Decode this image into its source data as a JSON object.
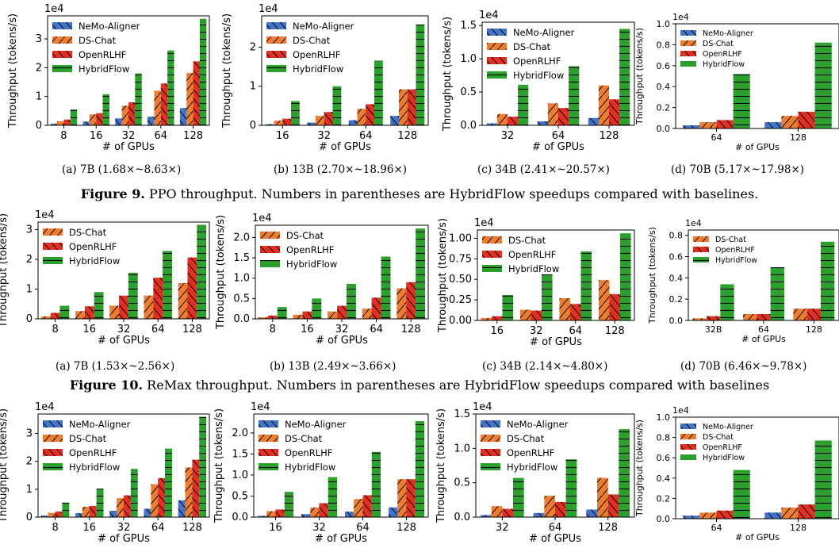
{
  "colors": {
    "NeMo-Aligner": "#4472c4",
    "DS-Chat": "#ed7d31",
    "OpenRLHF": "#e03024",
    "HybridFlow": "#2ca02c"
  },
  "hatch": {
    "NeMo-Aligner": "backslash",
    "DS-Chat": "slash",
    "OpenRLHF": "backslash",
    "HybridFlow": "horizontal"
  },
  "figures": [
    {
      "label": "Figure 9.",
      "text": " PPO throughput. Numbers in parentheses are HybridFlow speedups compared with baselines."
    },
    {
      "label": "Figure 10.",
      "text": " ReMax throughput. Numbers in parentheses are HybridFlow speedups compared with baselines"
    }
  ],
  "captions": [
    "(a)  7B (1.68×~8.63×)",
    "(b)  13B (2.70×~18.96×)",
    "(c)  34B (2.41×~20.57×)",
    "(d)  70B (5.17×~17.98×)",
    "(a)  7B (1.53×~2.56×)",
    "(b)  13B (2.49×~3.66×)",
    "(c)  34B (2.14×~4.80×)",
    "(d)  70B (6.46×~9.78×)"
  ],
  "chart_data": [
    {
      "type": "bar",
      "xlabel": "# of GPUs",
      "ylabel": "Throughput (tokens/s)",
      "offset_text": "1e4",
      "categories": [
        "8",
        "16",
        "32",
        "64",
        "128"
      ],
      "ylim": [
        0,
        3.8
      ],
      "yticks": [
        "0",
        "1",
        "2",
        "3"
      ],
      "legend": "upper-left",
      "series": [
        {
          "name": "NeMo-Aligner",
          "values": [
            0.06,
            0.13,
            0.24,
            0.3,
            0.6
          ]
        },
        {
          "name": "DS-Chat",
          "values": [
            0.14,
            0.38,
            0.68,
            1.2,
            1.82
          ]
        },
        {
          "name": "OpenRLHF",
          "values": [
            0.2,
            0.42,
            0.8,
            1.45,
            2.22
          ]
        },
        {
          "name": "HybridFlow",
          "values": [
            0.55,
            1.08,
            1.8,
            2.6,
            3.7
          ]
        }
      ]
    },
    {
      "type": "bar",
      "xlabel": "# of GPUs",
      "ylabel": "Throughput (tokens/s)",
      "offset_text": "1e4",
      "categories": [
        "16",
        "32",
        "64",
        "128"
      ],
      "ylim": [
        0,
        2.8
      ],
      "yticks": [
        "0",
        "1",
        "2"
      ],
      "legend": "upper-left",
      "series": [
        {
          "name": "NeMo-Aligner",
          "values": [
            0.03,
            0.07,
            0.13,
            0.24
          ]
        },
        {
          "name": "DS-Chat",
          "values": [
            0.12,
            0.24,
            0.42,
            0.92
          ]
        },
        {
          "name": "OpenRLHF",
          "values": [
            0.17,
            0.34,
            0.54,
            0.92
          ]
        },
        {
          "name": "HybridFlow",
          "values": [
            0.62,
            1.0,
            1.65,
            2.58
          ]
        }
      ]
    },
    {
      "type": "bar",
      "xlabel": "# of GPUs",
      "ylabel": "Throughput (tokens/s)",
      "offset_text": "1e4",
      "categories": [
        "32",
        "64",
        "128"
      ],
      "ylim": [
        0,
        1.55
      ],
      "yticks": [
        "0.0",
        "0.5",
        "1.0",
        "1.5"
      ],
      "legend": "upper-left",
      "series": [
        {
          "name": "NeMo-Aligner",
          "values": [
            0.03,
            0.06,
            0.11
          ]
        },
        {
          "name": "DS-Chat",
          "values": [
            0.17,
            0.33,
            0.6
          ]
        },
        {
          "name": "OpenRLHF",
          "values": [
            0.13,
            0.26,
            0.39
          ]
        },
        {
          "name": "HybridFlow",
          "values": [
            0.61,
            0.89,
            1.45
          ]
        }
      ]
    },
    {
      "type": "bar",
      "xlabel": "# of GPUs",
      "ylabel": "Throughput (tokens/s)",
      "offset_text": "1e4",
      "categories": [
        "64",
        "128"
      ],
      "ylim": [
        0,
        1.0
      ],
      "yticks": [
        "0.0",
        "0.2",
        "0.4",
        "0.6",
        "0.8",
        "1.0"
      ],
      "legend": "upper-left",
      "series": [
        {
          "name": "NeMo-Aligner",
          "values": [
            0.03,
            0.06
          ]
        },
        {
          "name": "DS-Chat",
          "values": [
            0.06,
            0.12
          ]
        },
        {
          "name": "OpenRLHF",
          "values": [
            0.08,
            0.16
          ]
        },
        {
          "name": "HybridFlow",
          "values": [
            0.52,
            0.82
          ]
        }
      ]
    },
    {
      "type": "bar",
      "xlabel": "# of GPUs",
      "ylabel": "Throughput (tokens/s)",
      "offset_text": "1e4",
      "categories": [
        "8",
        "16",
        "32",
        "64",
        "128"
      ],
      "ylim": [
        0,
        3.25
      ],
      "yticks": [
        "0",
        "1",
        "2",
        "3"
      ],
      "legend": "upper-left",
      "series": [
        {
          "name": "DS-Chat",
          "values": [
            0.08,
            0.26,
            0.44,
            0.78,
            1.2
          ]
        },
        {
          "name": "OpenRLHF",
          "values": [
            0.2,
            0.42,
            0.78,
            1.38,
            2.06
          ]
        },
        {
          "name": "HybridFlow",
          "values": [
            0.44,
            0.9,
            1.55,
            2.28,
            3.15
          ]
        }
      ]
    },
    {
      "type": "bar",
      "xlabel": "# of GPUs",
      "ylabel": "Throughput (tokens/s)",
      "offset_text": "1e4",
      "categories": [
        "8",
        "16",
        "32",
        "64",
        "128"
      ],
      "ylim": [
        0,
        2.3
      ],
      "yticks": [
        "0.0",
        "0.5",
        "1.0",
        "1.5",
        "2.0"
      ],
      "legend": "upper-left",
      "series": [
        {
          "name": "DS-Chat",
          "values": [
            0.04,
            0.1,
            0.18,
            0.25,
            0.75
          ]
        },
        {
          "name": "OpenRLHF",
          "values": [
            0.08,
            0.18,
            0.32,
            0.52,
            0.9
          ]
        },
        {
          "name": "HybridFlow",
          "values": [
            0.29,
            0.5,
            0.86,
            1.53,
            2.22
          ]
        }
      ]
    },
    {
      "type": "bar",
      "xlabel": "# of GPUs",
      "ylabel": "Throughput (tokens/s)",
      "offset_text": "1e4",
      "categories": [
        "16",
        "32",
        "64",
        "128"
      ],
      "ylim": [
        0,
        1.1
      ],
      "yticks": [
        "0.00",
        "0.25",
        "0.50",
        "0.75",
        "1.00"
      ],
      "legend": "upper-left",
      "series": [
        {
          "name": "DS-Chat",
          "values": [
            0.03,
            0.13,
            0.27,
            0.49
          ]
        },
        {
          "name": "OpenRLHF",
          "values": [
            0.05,
            0.12,
            0.2,
            0.32
          ]
        },
        {
          "name": "HybridFlow",
          "values": [
            0.31,
            0.56,
            0.84,
            1.06
          ]
        }
      ]
    },
    {
      "type": "bar",
      "xlabel": "# of GPUs",
      "ylabel": "Throughput (tokens/s)",
      "offset_text": "1e4",
      "categories": [
        "32B",
        "64",
        "128"
      ],
      "ylim": [
        0,
        0.85
      ],
      "yticks": [
        "0.0",
        "0.2",
        "0.4",
        "0.6",
        "0.8"
      ],
      "legend": "upper-left",
      "series": [
        {
          "name": "DS-Chat",
          "values": [
            0.02,
            0.06,
            0.11
          ]
        },
        {
          "name": "OpenRLHF",
          "values": [
            0.04,
            0.06,
            0.11
          ]
        },
        {
          "name": "HybridFlow",
          "values": [
            0.34,
            0.5,
            0.74
          ]
        }
      ]
    },
    {
      "type": "bar",
      "xlabel": "# of GPUs",
      "ylabel": "Throughput (tokens/s)",
      "offset_text": "1e4",
      "categories": [
        "8",
        "16",
        "32",
        "64",
        "128"
      ],
      "ylim": [
        0,
        3.7
      ],
      "yticks": [
        "0",
        "1",
        "2",
        "3"
      ],
      "legend": "upper-left",
      "series": [
        {
          "name": "NeMo-Aligner",
          "values": [
            0.06,
            0.14,
            0.23,
            0.3,
            0.6
          ]
        },
        {
          "name": "DS-Chat",
          "values": [
            0.15,
            0.37,
            0.68,
            1.18,
            1.78
          ]
        },
        {
          "name": "OpenRLHF",
          "values": [
            0.2,
            0.4,
            0.78,
            1.4,
            2.06
          ]
        },
        {
          "name": "HybridFlow",
          "values": [
            0.52,
            1.02,
            1.73,
            2.46,
            3.6
          ]
        }
      ]
    },
    {
      "type": "bar",
      "xlabel": "# of GPUs",
      "ylabel": "Throughput (tokens/s)",
      "offset_text": "1e4",
      "categories": [
        "16",
        "32",
        "64",
        "128"
      ],
      "ylim": [
        0,
        2.45
      ],
      "yticks": [
        "0.0",
        "0.5",
        "1.0",
        "1.5",
        "2.0"
      ],
      "legend": "upper-left",
      "series": [
        {
          "name": "NeMo-Aligner",
          "values": [
            0.03,
            0.07,
            0.13,
            0.23
          ]
        },
        {
          "name": "DS-Chat",
          "values": [
            0.14,
            0.23,
            0.43,
            0.9
          ]
        },
        {
          "name": "OpenRLHF",
          "values": [
            0.18,
            0.33,
            0.52,
            0.9
          ]
        },
        {
          "name": "HybridFlow",
          "values": [
            0.6,
            0.95,
            1.55,
            2.28
          ]
        }
      ]
    },
    {
      "type": "bar",
      "xlabel": "# of GPUs",
      "ylabel": "Throughput (tokens/s)",
      "offset_text": "1e4",
      "categories": [
        "32",
        "64",
        "128"
      ],
      "ylim": [
        0,
        1.5
      ],
      "yticks": [
        "0.0",
        "0.5",
        "1.0",
        "1.5"
      ],
      "legend": "upper-left",
      "series": [
        {
          "name": "NeMo-Aligner",
          "values": [
            0.03,
            0.06,
            0.11
          ]
        },
        {
          "name": "DS-Chat",
          "values": [
            0.16,
            0.31,
            0.57
          ]
        },
        {
          "name": "OpenRLHF",
          "values": [
            0.12,
            0.22,
            0.33
          ]
        },
        {
          "name": "HybridFlow",
          "values": [
            0.57,
            0.84,
            1.28
          ]
        }
      ]
    },
    {
      "type": "bar",
      "xlabel": "# of GPUs",
      "ylabel": "Throughput (tokens/s)",
      "offset_text": "1e4",
      "categories": [
        "64",
        "128"
      ],
      "ylim": [
        0,
        1.0
      ],
      "yticks": [
        "0.0",
        "0.2",
        "0.4",
        "0.6",
        "0.8",
        "1.0"
      ],
      "legend": "upper-left",
      "series": [
        {
          "name": "NeMo-Aligner",
          "values": [
            0.03,
            0.06
          ]
        },
        {
          "name": "DS-Chat",
          "values": [
            0.06,
            0.11
          ]
        },
        {
          "name": "OpenRLHF",
          "values": [
            0.08,
            0.14
          ]
        },
        {
          "name": "HybridFlow",
          "values": [
            0.48,
            0.77
          ]
        }
      ]
    }
  ]
}
